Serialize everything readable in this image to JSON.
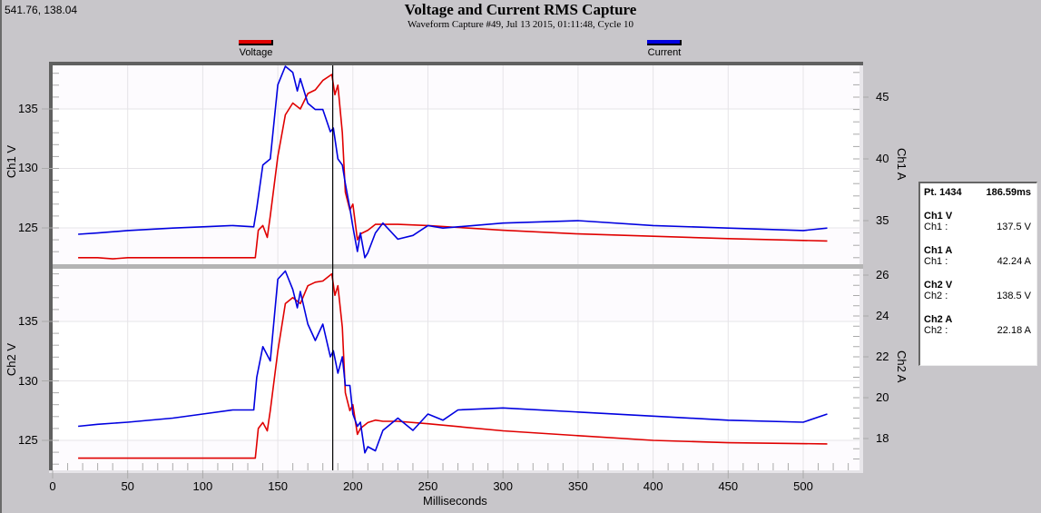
{
  "cursor_coords": "541.76, 138.04",
  "title": "Voltage and Current RMS Capture",
  "subtitle": "Waveform Capture #49, Jul 13 2015, 01:11:48,  Cycle 10",
  "legend": [
    {
      "label": "Voltage",
      "color": "#e00000"
    },
    {
      "label": "Current",
      "color": "#0000e0"
    }
  ],
  "info_panel": {
    "point": "Pt. 1434",
    "time": "186.59ms",
    "channels": [
      {
        "title": "Ch1 V",
        "label": "Ch1 :",
        "value": "137.5 V"
      },
      {
        "title": "Ch1 A",
        "label": "Ch1 :",
        "value": "42.24 A"
      },
      {
        "title": "Ch2 V",
        "label": "Ch2 :",
        "value": "138.5 V"
      },
      {
        "title": "Ch2 A",
        "label": "Ch2 :",
        "value": "22.18 A"
      }
    ]
  },
  "axes": {
    "x_label": "Milliseconds",
    "x_ticks": [
      "0",
      "50",
      "100",
      "150",
      "200",
      "250",
      "300",
      "350",
      "400",
      "450",
      "500"
    ],
    "panel1": {
      "left_label": "Ch1 V",
      "right_label": "Ch1 A",
      "left_ticks": [
        "135",
        "130",
        "125"
      ],
      "right_ticks": [
        "45",
        "40",
        "35"
      ]
    },
    "panel2": {
      "left_label": "Ch2 V",
      "right_label": "Ch2 A",
      "left_ticks": [
        "135",
        "130",
        "125"
      ],
      "right_ticks": [
        "26",
        "24",
        "22",
        "20",
        "18"
      ]
    }
  },
  "chart_data": [
    {
      "type": "line",
      "title": "Voltage and Current RMS Capture - Channel 1",
      "xlabel": "Milliseconds",
      "ylabel": "Ch1 V",
      "ylabel_right": "Ch1 A",
      "xlim": [
        0,
        535
      ],
      "ylim": [
        121.5,
        138.5
      ],
      "ylim_right": [
        26.5,
        47.5
      ],
      "cursor_x": 186.59,
      "series": [
        {
          "name": "Voltage",
          "axis": "left",
          "color": "#e00000",
          "x": [
            17,
            30,
            40,
            50,
            135,
            137,
            140,
            143,
            145,
            150,
            155,
            160,
            165,
            170,
            175,
            180,
            186,
            188,
            190,
            193,
            195,
            198,
            200,
            203,
            205,
            210,
            215,
            220,
            230,
            250,
            300,
            350,
            400,
            450,
            516
          ],
          "y": [
            122.5,
            122.5,
            122.4,
            122.5,
            122.5,
            124.8,
            125.2,
            124.2,
            126,
            131,
            134.5,
            135.5,
            135,
            136.3,
            136.6,
            137.4,
            137.9,
            136.2,
            137,
            133,
            128,
            126.5,
            127,
            124,
            124.5,
            124.8,
            125.3,
            125.3,
            125.3,
            125.2,
            124.8,
            124.5,
            124.3,
            124.1,
            123.9
          ]
        },
        {
          "name": "Current",
          "axis": "right",
          "color": "#0000e0",
          "x": [
            17,
            30,
            50,
            80,
            100,
            120,
            134,
            136,
            140,
            145,
            150,
            155,
            160,
            163,
            165,
            170,
            175,
            180,
            185,
            187,
            190,
            193,
            195,
            198,
            200,
            203,
            205,
            208,
            210,
            215,
            220,
            230,
            240,
            250,
            260,
            270,
            300,
            350,
            400,
            450,
            500,
            516
          ],
          "y": [
            33.9,
            34,
            34.2,
            34.4,
            34.5,
            34.6,
            34.5,
            36,
            39.5,
            40,
            46,
            47.5,
            47,
            45.5,
            46.5,
            44.5,
            44,
            44,
            42.2,
            42.5,
            40,
            39.5,
            38,
            36,
            34.5,
            32.5,
            34,
            32,
            32.4,
            34,
            34.8,
            33.5,
            33.8,
            34.6,
            34.4,
            34.5,
            34.8,
            35,
            34.6,
            34.4,
            34.2,
            34.4
          ]
        }
      ]
    },
    {
      "type": "line",
      "title": "Voltage and Current RMS Capture - Channel 2",
      "xlabel": "Milliseconds",
      "ylabel": "Ch2 V",
      "ylabel_right": "Ch2 A",
      "xlim": [
        0,
        535
      ],
      "ylim": [
        122.5,
        139.5
      ],
      "ylim_right": [
        16.8,
        26.5
      ],
      "cursor_x": 186.59,
      "series": [
        {
          "name": "Voltage",
          "axis": "left",
          "color": "#e00000",
          "x": [
            17,
            50,
            135,
            137,
            140,
            143,
            145,
            150,
            155,
            160,
            165,
            170,
            175,
            180,
            186,
            188,
            190,
            193,
            195,
            198,
            200,
            203,
            205,
            210,
            215,
            220,
            230,
            250,
            300,
            350,
            400,
            450,
            516
          ],
          "y": [
            123.5,
            123.5,
            123.5,
            126,
            126.5,
            125.8,
            127.5,
            132.5,
            136.5,
            137,
            136.5,
            138,
            138.3,
            138.4,
            139,
            137.2,
            138,
            134.5,
            129,
            127.5,
            128,
            125.5,
            126,
            126.5,
            126.7,
            126.6,
            126.6,
            126.4,
            125.8,
            125.4,
            125,
            124.8,
            124.7
          ]
        },
        {
          "name": "Current",
          "axis": "right",
          "color": "#0000e0",
          "x": [
            17,
            30,
            50,
            80,
            100,
            120,
            134,
            136,
            140,
            145,
            150,
            155,
            160,
            163,
            165,
            170,
            175,
            180,
            185,
            187,
            190,
            193,
            195,
            198,
            200,
            203,
            205,
            208,
            210,
            215,
            220,
            230,
            240,
            250,
            260,
            270,
            300,
            350,
            400,
            450,
            500,
            516
          ],
          "y": [
            18.6,
            18.7,
            18.8,
            19,
            19.2,
            19.4,
            19.4,
            21,
            22.5,
            21.8,
            25.8,
            26.2,
            25.3,
            24.4,
            25.2,
            23.6,
            22.8,
            23.6,
            22,
            22.3,
            21.2,
            22,
            20.6,
            20.6,
            19.2,
            18.6,
            18.8,
            17.3,
            17.6,
            17.4,
            18.4,
            19,
            18.4,
            19.2,
            18.9,
            19.4,
            19.5,
            19.3,
            19.1,
            18.9,
            18.8,
            19.2
          ]
        }
      ]
    }
  ]
}
